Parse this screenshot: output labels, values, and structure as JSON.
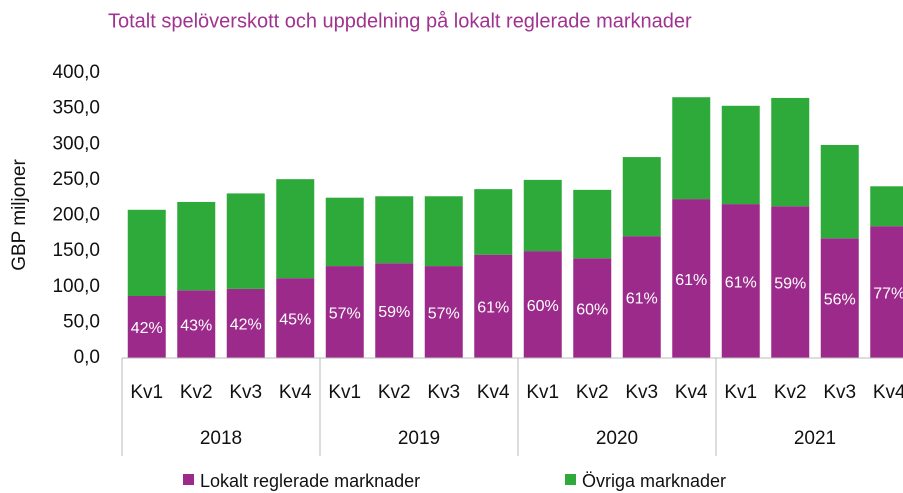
{
  "chart_data": {
    "type": "stacked_bar",
    "title": "Totalt spelöverskott och uppdelning på lokalt reglerade marknader",
    "y_label": "GBP miljoner",
    "categories": [
      "Kv1",
      "Kv2",
      "Kv3",
      "Kv4",
      "Kv1",
      "Kv2",
      "Kv3",
      "Kv4",
      "Kv1",
      "Kv2",
      "Kv3",
      "Kv4",
      "Kv1",
      "Kv2",
      "Kv3",
      "Kv4"
    ],
    "groups": [
      "2018",
      "2019",
      "2020",
      "2021"
    ],
    "series": [
      {
        "name": "Lokalt reglerade marknader",
        "color": "#9b2a8a",
        "values": [
          87,
          95,
          97,
          112,
          129,
          133,
          129,
          145,
          150,
          140,
          171,
          223,
          216,
          213,
          168,
          185
        ],
        "share_labels": [
          "42%",
          "43%",
          "42%",
          "45%",
          "57%",
          "59%",
          "57%",
          "61%",
          "60%",
          "60%",
          "61%",
          "61%",
          "61%",
          "59%",
          "56%",
          "77%"
        ]
      },
      {
        "name": "Övriga marknader",
        "color": "#2eaa3a",
        "values": [
          121,
          124,
          134,
          139,
          96,
          94,
          98,
          92,
          100,
          96,
          111,
          143,
          138,
          152,
          131,
          56
        ]
      }
    ],
    "ylim": [
      0,
      400
    ],
    "yticks": [
      {
        "value": 0,
        "label": "0,0"
      },
      {
        "value": 50,
        "label": "50,0"
      },
      {
        "value": 100,
        "label": "100,0"
      },
      {
        "value": 150,
        "label": "150,0"
      },
      {
        "value": 200,
        "label": "200,0"
      },
      {
        "value": 250,
        "label": "250,0"
      },
      {
        "value": 300,
        "label": "300,0"
      },
      {
        "value": 350,
        "label": "350,0"
      },
      {
        "value": 400,
        "label": "400,0"
      }
    ],
    "legend": "bottom"
  }
}
